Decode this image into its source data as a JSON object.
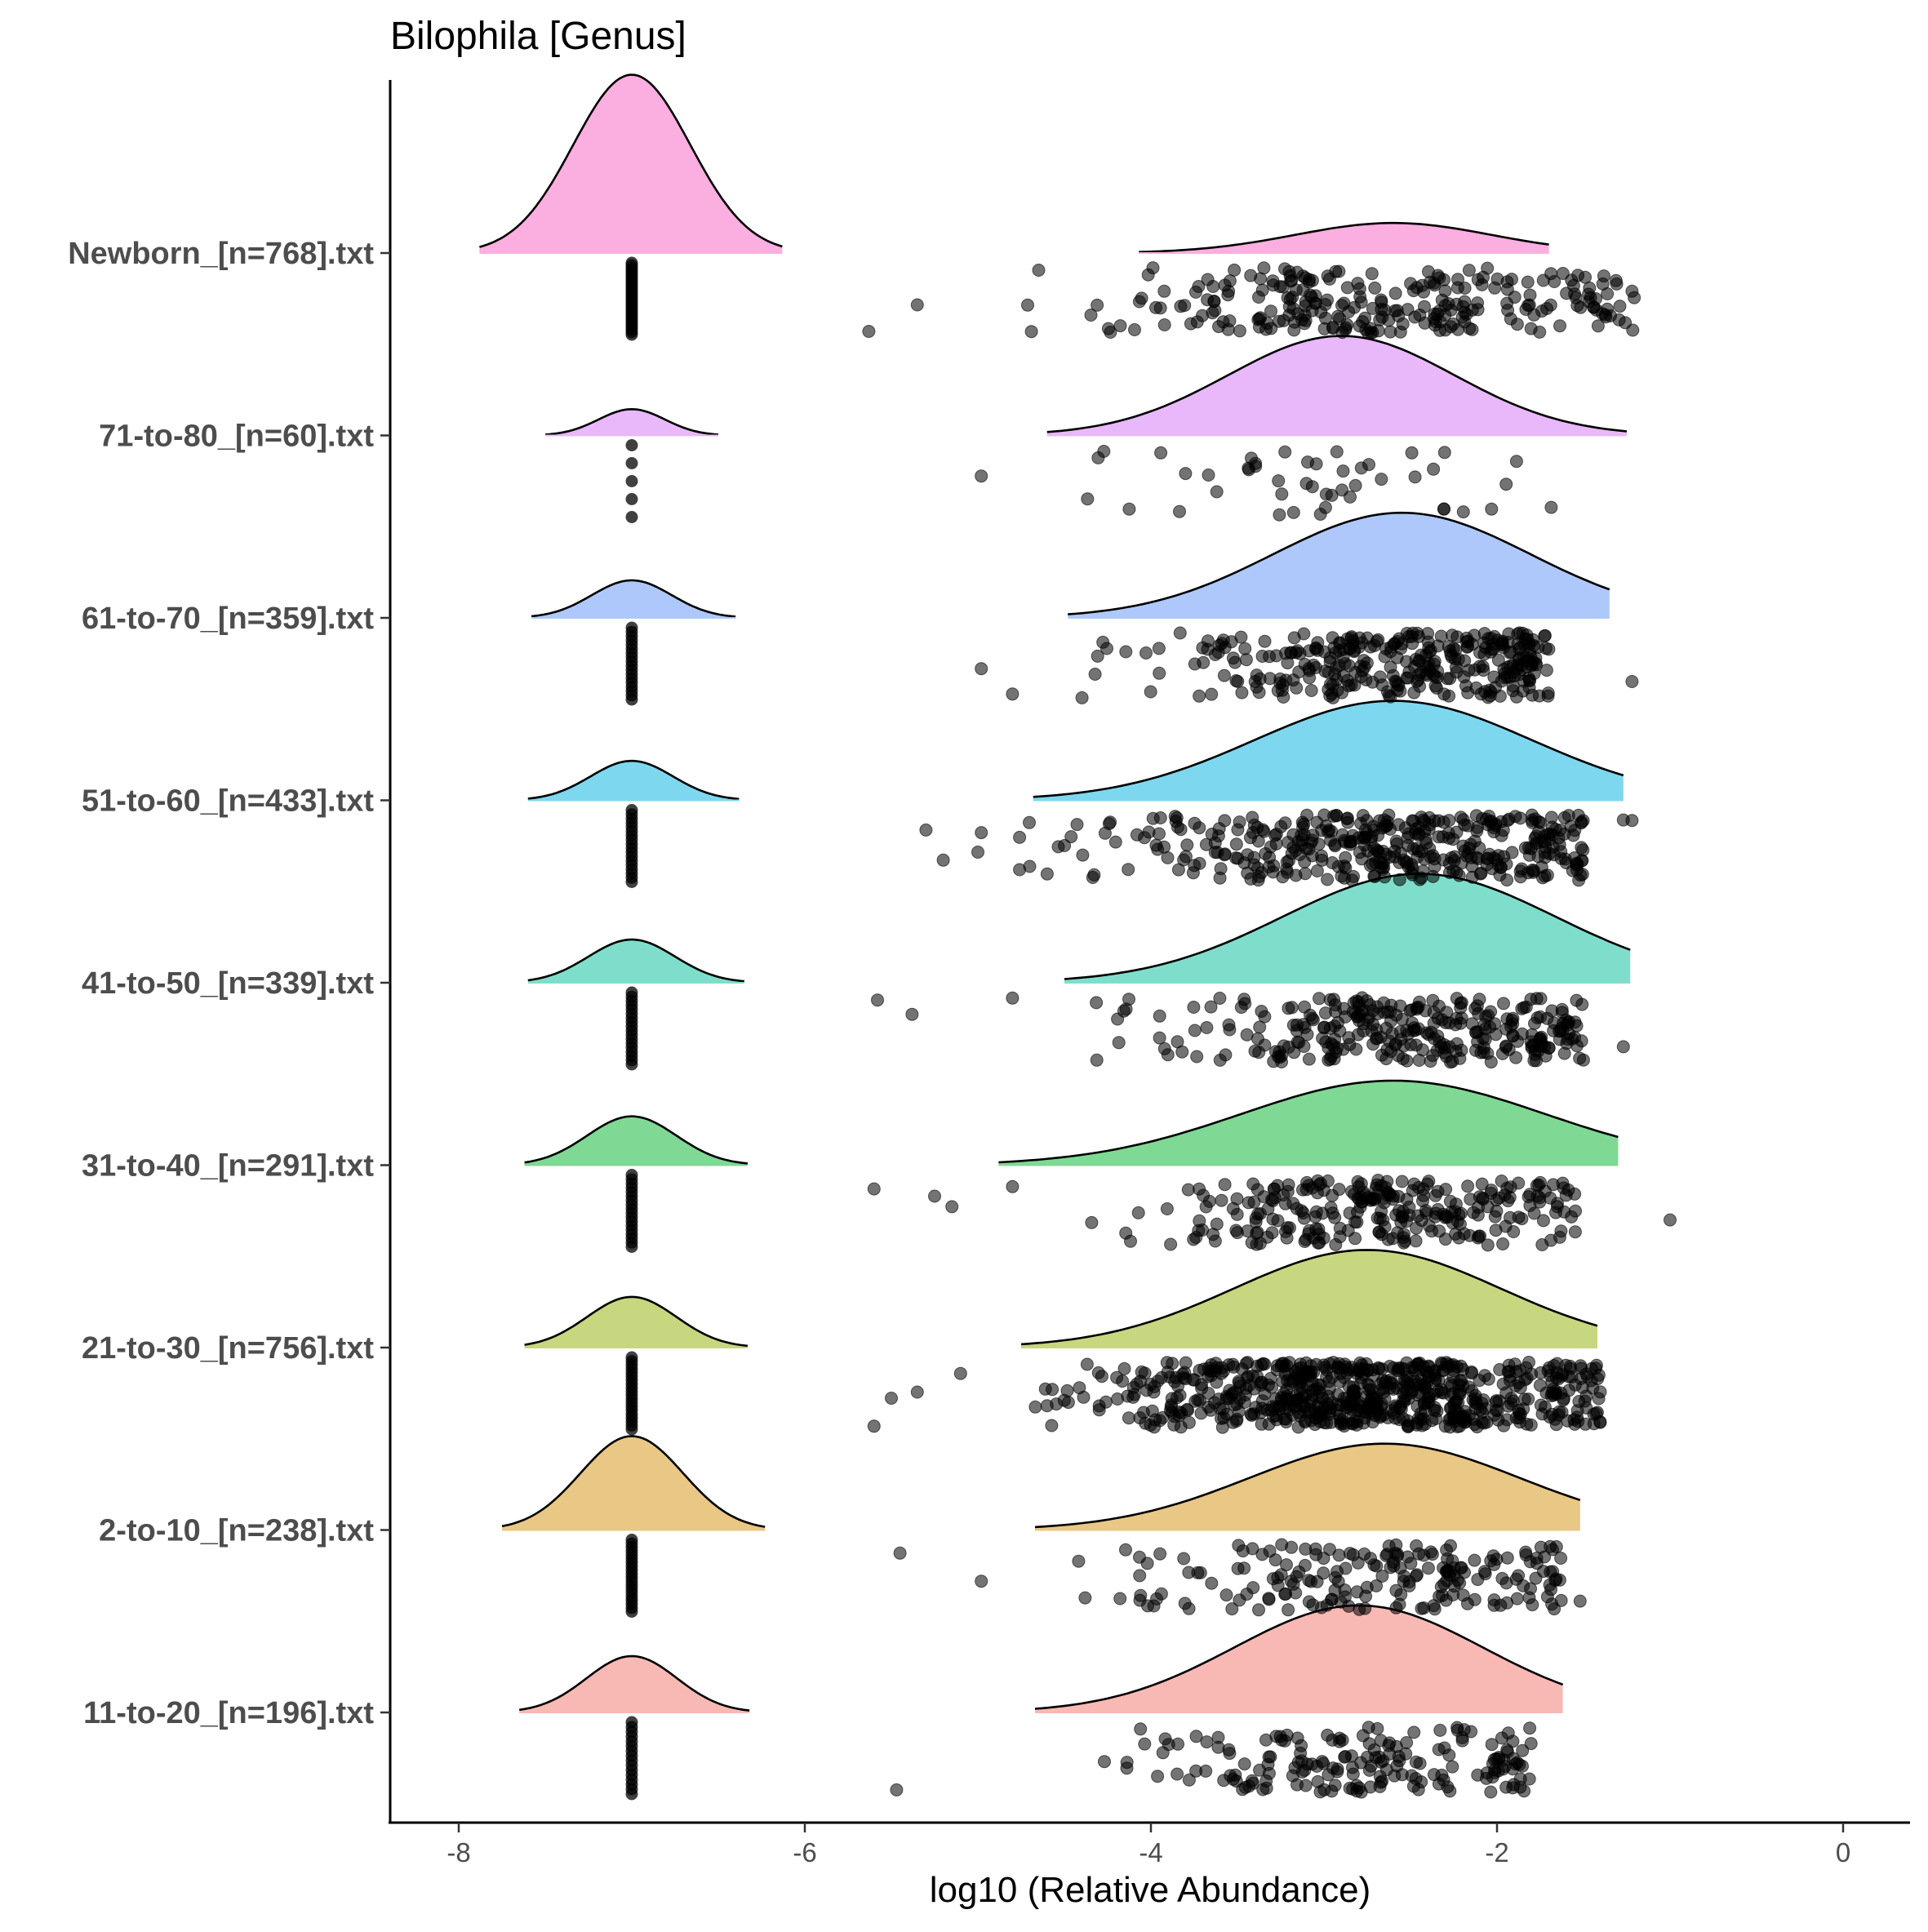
{
  "chart_data": {
    "type": "raincloud",
    "title": "Bilophila [Genus]",
    "xlabel": "log10 (Relative Abundance)",
    "ylabel": "",
    "xlim": [
      -8.2,
      0.2
    ],
    "x_ticks": [
      -8,
      -6,
      -4,
      -2,
      0
    ],
    "x_tick_labels": [
      "-8",
      "-6",
      "-4",
      "-2",
      "0"
    ],
    "grid": false,
    "legend": "none",
    "point_color": "#000000",
    "groups": [
      {
        "label": "Newborn_[n=768].txt",
        "color": "#fbaee0",
        "left_peak": {
          "center": -7.0,
          "range": [
            -7.88,
            -6.13
          ],
          "height": 0.95
        },
        "right_peak": {
          "center": -2.6,
          "range": [
            -4.07,
            -1.7
          ],
          "height": 0.16
        },
        "zero_points": 30,
        "points": 260,
        "point_range": [
          -4.8,
          -1.2
        ],
        "point_center": -2.6,
        "outliers": [
          -5.63,
          -5.35,
          -1.22
        ]
      },
      {
        "label": "71-to-80_[n=60].txt",
        "color": "#e8b8fb",
        "left_peak": {
          "center": -7.0,
          "range": [
            -7.5,
            -6.5
          ],
          "height": 0.14
        },
        "right_peak": {
          "center": -2.9,
          "range": [
            -4.6,
            -1.25
          ],
          "height": 0.53
        },
        "zero_points": 5,
        "points": 46,
        "point_range": [
          -4.4,
          -1.6
        ],
        "point_center": -2.9,
        "outliers": [
          -4.98
        ]
      },
      {
        "label": "61-to-70_[n=359].txt",
        "color": "#aec8fb",
        "left_peak": {
          "center": -7.0,
          "range": [
            -7.58,
            -6.4
          ],
          "height": 0.2
        },
        "right_peak": {
          "center": -2.55,
          "range": [
            -4.48,
            -1.35
          ],
          "height": 0.56
        },
        "zero_points": 18,
        "points": 330,
        "point_range": [
          -4.5,
          -1.7
        ],
        "point_center": -2.6,
        "outliers": [
          -4.98,
          -4.8,
          -1.22
        ]
      },
      {
        "label": "51-to-60_[n=433].txt",
        "color": "#7dd7ee",
        "left_peak": {
          "center": -7.0,
          "range": [
            -7.6,
            -6.38
          ],
          "height": 0.21
        },
        "right_peak": {
          "center": -2.6,
          "range": [
            -4.68,
            -1.27
          ],
          "height": 0.53
        },
        "zero_points": 18,
        "points": 400,
        "point_range": [
          -4.8,
          -1.5
        ],
        "point_center": -2.6,
        "outliers": [
          -5.3,
          -5.2,
          -5.0,
          -4.98,
          -1.27,
          -1.22
        ]
      },
      {
        "label": "41-to-50_[n=339].txt",
        "color": "#7fdecb",
        "left_peak": {
          "center": -7.0,
          "range": [
            -7.6,
            -6.35
          ],
          "height": 0.23
        },
        "right_peak": {
          "center": -2.45,
          "range": [
            -4.5,
            -1.23
          ],
          "height": 0.58
        },
        "zero_points": 18,
        "points": 300,
        "point_range": [
          -4.4,
          -1.5
        ],
        "point_center": -2.5,
        "outliers": [
          -5.58,
          -5.38,
          -4.8,
          -1.27
        ]
      },
      {
        "label": "31-to-40_[n=291].txt",
        "color": "#7fd994",
        "left_peak": {
          "center": -7.0,
          "range": [
            -7.62,
            -6.33
          ],
          "height": 0.26
        },
        "right_peak": {
          "center": -2.6,
          "range": [
            -4.88,
            -1.3
          ],
          "height": 0.45
        },
        "zero_points": 18,
        "points": 270,
        "point_range": [
          -4.5,
          -1.5
        ],
        "point_center": -2.6,
        "outliers": [
          -5.6,
          -5.25,
          -5.15,
          -4.8,
          -1.0
        ]
      },
      {
        "label": "21-to-30_[n=756].txt",
        "color": "#c7d77f",
        "left_peak": {
          "center": -7.0,
          "range": [
            -7.62,
            -6.33
          ],
          "height": 0.27
        },
        "right_peak": {
          "center": -2.75,
          "range": [
            -4.75,
            -1.42
          ],
          "height": 0.52
        },
        "zero_points": 20,
        "points": 700,
        "point_range": [
          -4.7,
          -1.4
        ],
        "point_center": -2.75,
        "outliers": [
          -5.6,
          -5.5,
          -5.35,
          -5.1
        ]
      },
      {
        "label": "2-to-10_[n=238].txt",
        "color": "#e9c784",
        "left_peak": {
          "center": -7.0,
          "range": [
            -7.75,
            -6.23
          ],
          "height": 0.5
        },
        "right_peak": {
          "center": -2.65,
          "range": [
            -4.67,
            -1.52
          ],
          "height": 0.46
        },
        "zero_points": 20,
        "points": 200,
        "point_range": [
          -4.7,
          -1.6
        ],
        "point_center": -2.65,
        "outliers": [
          -5.45,
          -4.98,
          -1.52
        ]
      },
      {
        "label": "11-to-20_[n=196].txt",
        "color": "#f8b9b4",
        "left_peak": {
          "center": -7.0,
          "range": [
            -7.65,
            -6.32
          ],
          "height": 0.3
        },
        "right_peak": {
          "center": -2.8,
          "range": [
            -4.67,
            -1.62
          ],
          "height": 0.57
        },
        "zero_points": 16,
        "points": 180,
        "point_range": [
          -4.6,
          -1.8
        ],
        "point_center": -2.8,
        "outliers": [
          -5.47
        ]
      }
    ]
  }
}
